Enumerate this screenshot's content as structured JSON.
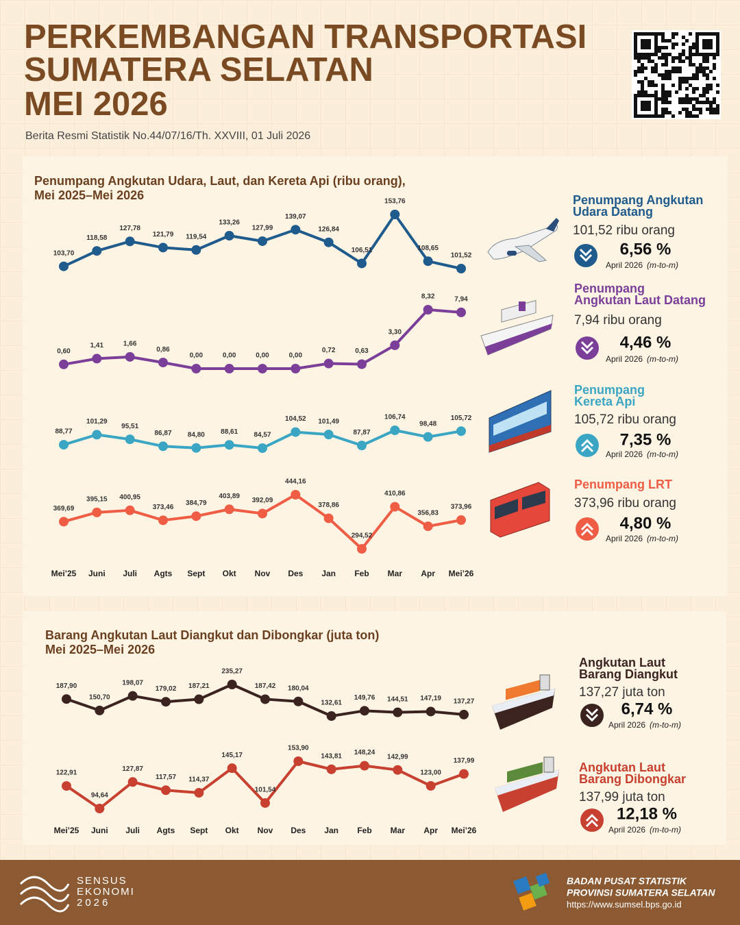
{
  "header": {
    "title": [
      "PERKEMBANGAN TRANSPORTASI",
      "SUMATERA SELATAN",
      "MEI 2026"
    ],
    "subtitle": "Berita Resmi Statistik No.44/07/16/Th. XXVIII, 01 Juli 2026"
  },
  "chart_data": [
    {
      "type": "line",
      "title": [
        "Penumpang Angkutan Udara, Laut, dan Kereta Api (ribu orang),",
        "Mei 2025–Mei 2026"
      ],
      "categories": [
        "Mei’25",
        "Juni",
        "Juli",
        "Agts",
        "Sept",
        "Okt",
        "Nov",
        "Des",
        "Jan",
        "Feb",
        "Mar",
        "Apr",
        "Mei’26"
      ],
      "series": [
        {
          "name": [
            "Penumpang Angkutan",
            "Udara Datang"
          ],
          "color": "#1f5b8c",
          "values": [
            103.7,
            118.58,
            127.78,
            121.79,
            119.54,
            133.26,
            127.99,
            139.07,
            126.84,
            106.51,
            153.76,
            108.65,
            101.52
          ],
          "value_labels": [
            "103,70",
            "118,58",
            "127,78",
            "121,79",
            "119,54",
            "133,26",
            "127,99",
            "139,07",
            "126,84",
            "106,51",
            "153,76",
            "108,65",
            "101,52"
          ],
          "summary": "101,52 ribu orang",
          "change": "6,56 %",
          "period": "April 2026",
          "basis": "(m-to-m)",
          "direction": "down"
        },
        {
          "name": [
            "Penumpang",
            "Angkutan Laut Datang"
          ],
          "color": "#7b3f99",
          "values": [
            0.6,
            1.41,
            1.66,
            0.86,
            0.0,
            0.0,
            0.0,
            0.0,
            0.72,
            0.63,
            3.3,
            8.32,
            7.94
          ],
          "value_labels": [
            "0,60",
            "1,41",
            "1,66",
            "0,86",
            "0,00",
            "0,00",
            "0,00",
            "0,00",
            "0,72",
            "0,63",
            "3,30",
            "8,32",
            "7,94"
          ],
          "summary": "7,94 ribu orang",
          "change": "4,46 %",
          "period": "April 2026",
          "basis": "(m-to-m)",
          "direction": "down"
        },
        {
          "name": [
            "Penumpang",
            "Kereta Api"
          ],
          "color": "#3aa6c4",
          "values": [
            88.77,
            101.29,
            95.51,
            86.87,
            84.8,
            88.61,
            84.57,
            104.52,
            101.49,
            87.87,
            106.74,
            98.48,
            105.72
          ],
          "value_labels": [
            "88,77",
            "101,29",
            "95,51",
            "86,87",
            "84,80",
            "88,61",
            "84,57",
            "104,52",
            "101,49",
            "87,87",
            "106,74",
            "98,48",
            "105,72"
          ],
          "summary": "105,72 ribu orang",
          "change": "7,35 %",
          "period": "April 2026",
          "basis": "(m-to-m)",
          "direction": "up"
        },
        {
          "name": [
            "Penumpang LRT"
          ],
          "color": "#ef5d45",
          "values": [
            369.69,
            395.15,
            400.95,
            373.46,
            384.79,
            403.89,
            392.09,
            444.16,
            378.86,
            294.52,
            410.86,
            356.83,
            373.96
          ],
          "value_labels": [
            "369,69",
            "395,15",
            "400,95",
            "373,46",
            "384,79",
            "403,89",
            "392,09",
            "444,16",
            "378,86",
            "294,52",
            "410,86",
            "356,83",
            "373,96"
          ],
          "summary": "373,96 ribu orang",
          "change": "4,80 %",
          "period": "April 2026",
          "basis": "(m-to-m)",
          "direction": "up"
        }
      ]
    },
    {
      "type": "line",
      "title": [
        "Barang Angkutan Laut Diangkut dan Dibongkar (juta ton)",
        "Mei 2025–Mei 2026"
      ],
      "categories": [
        "Mei’25",
        "Juni",
        "Juli",
        "Agts",
        "Sept",
        "Okt",
        "Nov",
        "Des",
        "Jan",
        "Feb",
        "Mar",
        "Apr",
        "Mei’26"
      ],
      "series": [
        {
          "name": [
            "Angkutan Laut",
            "Barang Diangkut"
          ],
          "color": "#3b2320",
          "values": [
            187.9,
            150.7,
            198.07,
            179.02,
            187.21,
            235.27,
            187.42,
            180.04,
            132.61,
            149.76,
            144.51,
            147.19,
            137.27
          ],
          "value_labels": [
            "187,90",
            "150,70",
            "198,07",
            "179,02",
            "187,21",
            "235,27",
            "187,42",
            "180,04",
            "132,61",
            "149,76",
            "144,51",
            "147,19",
            "137,27"
          ],
          "summary": "137,27 juta ton",
          "change": "6,74 %",
          "period": "April 2026",
          "basis": "(m-to-m)",
          "direction": "down"
        },
        {
          "name": [
            "Angkutan Laut",
            "Barang Dibongkar"
          ],
          "color": "#c8402f",
          "values": [
            122.91,
            94.64,
            127.87,
            117.57,
            114.37,
            145.17,
            101.54,
            153.9,
            143.81,
            148.24,
            142.99,
            123.0,
            137.99
          ],
          "value_labels": [
            "122,91",
            "94,64",
            "127,87",
            "117,57",
            "114,37",
            "145,17",
            "101,54",
            "153,90",
            "143,81",
            "148,24",
            "142,99",
            "123,00",
            "137,99"
          ],
          "summary": "137,99 juta ton",
          "change": "12,18 %",
          "period": "April 2026",
          "basis": "(m-to-m)",
          "direction": "up"
        }
      ]
    }
  ],
  "footer": {
    "census": [
      "SENSUS",
      "EKONOMI",
      "2026"
    ],
    "agency": [
      "BADAN PUSAT STATISTIK",
      "PROVINSI SUMATERA SELATAN"
    ],
    "url": "https://www.sumsel.bps.go.id"
  }
}
